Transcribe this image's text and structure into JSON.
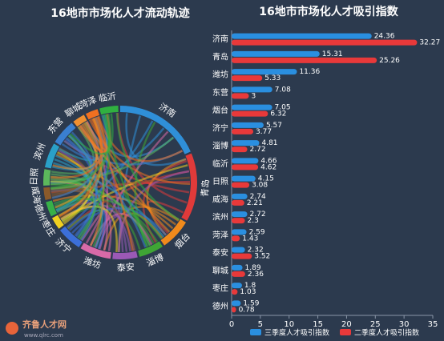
{
  "chart_data": [
    {
      "type": "chord",
      "title": "16地市市场化人才流动轨迹",
      "categories": [
        "济南",
        "青岛",
        "烟台",
        "淄博",
        "泰安",
        "潍坊",
        "济宁",
        "枣庄",
        "德州",
        "威海",
        "日照",
        "滨州",
        "东营",
        "聊城",
        "菏泽",
        "临沂"
      ],
      "values": [
        70,
        55,
        25,
        20,
        20,
        25,
        20,
        10,
        12,
        10,
        13,
        20,
        20,
        10,
        10,
        15
      ],
      "colors": [
        "#2f8fd8",
        "#e03a3a",
        "#f08a1c",
        "#3fa535",
        "#9b59b6",
        "#d86aa8",
        "#3c6fd8",
        "#f0d020",
        "#38b048",
        "#8b5a2b",
        "#5cb85c",
        "#2aa0c8",
        "#3a7fd0",
        "#f09030",
        "#f07020",
        "#30b040"
      ]
    },
    {
      "type": "hbar",
      "title": "16地市市场化人才吸引指数",
      "categories": [
        "济南",
        "青岛",
        "潍坊",
        "东营",
        "烟台",
        "济宁",
        "淄博",
        "临沂",
        "日照",
        "威海",
        "滨州",
        "菏泽",
        "泰安",
        "聊城",
        "枣庄",
        "德州"
      ],
      "series": [
        {
          "name": "三季度人才吸引指数",
          "color": "#2a8fe0",
          "values": [
            24.36,
            15.31,
            11.36,
            7.08,
            7.05,
            5.57,
            4.81,
            4.66,
            4.15,
            2.74,
            2.72,
            2.59,
            2.32,
            1.89,
            1.8,
            1.59
          ]
        },
        {
          "name": "二季度人才吸引指数",
          "color": "#e8393a",
          "values": [
            32.27,
            25.26,
            5.33,
            3,
            6.32,
            3.77,
            2.72,
            4.62,
            3.08,
            2.21,
            2.3,
            1.43,
            3.52,
            2.36,
            1.03,
            0.78
          ]
        }
      ],
      "xlim": [
        0,
        35
      ],
      "xticks": [
        0,
        5,
        10,
        15,
        20,
        25,
        30,
        35
      ],
      "grid": false,
      "legend": "bottom"
    }
  ],
  "logo": {
    "name": "齐鲁人才网",
    "url": "www.qlrc.com"
  }
}
